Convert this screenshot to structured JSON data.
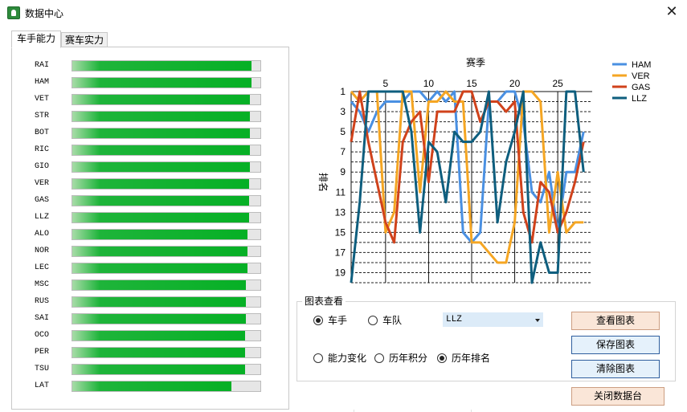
{
  "window": {
    "title": "数据中心",
    "close_glyph": "✕"
  },
  "tabs": [
    {
      "label": "车手能力",
      "active": true
    },
    {
      "label": "赛车实力",
      "active": false
    }
  ],
  "drivers": [
    {
      "code": "RAI",
      "ability": 0.955
    },
    {
      "code": "HAM",
      "ability": 0.955
    },
    {
      "code": "VET",
      "ability": 0.945
    },
    {
      "code": "STR",
      "ability": 0.945
    },
    {
      "code": "BOT",
      "ability": 0.945
    },
    {
      "code": "RIC",
      "ability": 0.945
    },
    {
      "code": "GIO",
      "ability": 0.945
    },
    {
      "code": "VER",
      "ability": 0.94
    },
    {
      "code": "GAS",
      "ability": 0.94
    },
    {
      "code": "LLZ",
      "ability": 0.94
    },
    {
      "code": "ALO",
      "ability": 0.93
    },
    {
      "code": "NOR",
      "ability": 0.93
    },
    {
      "code": "LEC",
      "ability": 0.93
    },
    {
      "code": "MSC",
      "ability": 0.925
    },
    {
      "code": "RUS",
      "ability": 0.925
    },
    {
      "code": "SAI",
      "ability": 0.925
    },
    {
      "code": "OCO",
      "ability": 0.92
    },
    {
      "code": "PER",
      "ability": 0.92
    },
    {
      "code": "TSU",
      "ability": 0.92
    },
    {
      "code": "LAT",
      "ability": 0.845
    }
  ],
  "chart_data": {
    "type": "line",
    "title": "",
    "xlabel": "赛季",
    "ylabel": "排名",
    "x_axis_position": "top",
    "y_inverted": true,
    "xlim": [
      1,
      29
    ],
    "ylim": [
      1,
      20
    ],
    "xticks": [
      5,
      10,
      15,
      20,
      25
    ],
    "yticks": [
      1,
      3,
      5,
      7,
      9,
      11,
      13,
      15,
      17,
      19
    ],
    "grid": "horizontal dashed every rank; vertical solid at multiples of 5",
    "legend_position": "right",
    "x": [
      1,
      2,
      3,
      4,
      5,
      6,
      7,
      8,
      9,
      10,
      11,
      12,
      13,
      14,
      15,
      16,
      17,
      18,
      19,
      20,
      21,
      22,
      23,
      24,
      25,
      26,
      27,
      28
    ],
    "series": [
      {
        "name": "HAM",
        "color": "#4a90e2",
        "values": [
          2,
          3,
          5,
          3,
          2,
          2,
          2,
          1,
          1,
          2,
          1,
          2,
          1,
          15,
          16,
          15,
          2,
          2,
          1,
          1,
          4,
          11,
          12,
          9,
          15,
          9,
          9,
          5
        ]
      },
      {
        "name": "VER",
        "color": "#f5a623",
        "values": [
          1,
          2,
          1,
          1,
          15,
          13,
          1,
          1,
          11,
          2,
          2,
          1,
          2,
          2,
          16,
          16,
          17,
          18,
          18,
          14,
          1,
          1,
          2,
          15,
          9,
          15,
          14,
          14
        ]
      },
      {
        "name": "GAS",
        "color": "#d0421b",
        "values": [
          6,
          1,
          6,
          10,
          14,
          16,
          6,
          4,
          3,
          10,
          3,
          3,
          3,
          1,
          1,
          4,
          2,
          2,
          3,
          2,
          13,
          16,
          10,
          11,
          15,
          13,
          10,
          6
        ]
      },
      {
        "name": "LLZ",
        "color": "#0e5e7e",
        "values": [
          20,
          12,
          1,
          1,
          1,
          1,
          1,
          5,
          15,
          6,
          7,
          12,
          5,
          6,
          6,
          5,
          1,
          14,
          8,
          5,
          1,
          20,
          16,
          19,
          19,
          1,
          1,
          9
        ]
      }
    ]
  },
  "group": {
    "title": "图表查看"
  },
  "radios": {
    "driver": {
      "label": "车手",
      "checked": true
    },
    "team": {
      "label": "车队",
      "checked": false
    },
    "ability_change": {
      "label": "能力变化",
      "checked": false
    },
    "history_points": {
      "label": "历年积分",
      "checked": false
    },
    "history_rank": {
      "label": "历年排名",
      "checked": true
    }
  },
  "select": {
    "value": "LLZ"
  },
  "buttons": {
    "view_chart": "查看图表",
    "save_chart": "保存图表",
    "clear_chart": "清除图表",
    "close_datacenter": "关闭数据台"
  }
}
